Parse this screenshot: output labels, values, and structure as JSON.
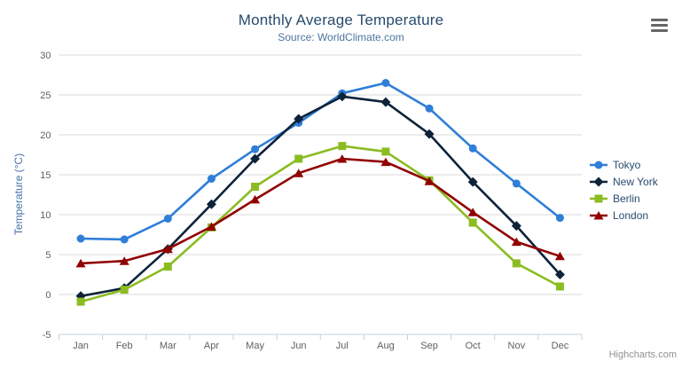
{
  "header": {
    "title": "Monthly Average Temperature",
    "subtitle": "Source: WorldClimate.com"
  },
  "export_menu": {
    "icon": "hamburger-menu-icon"
  },
  "credits": {
    "label": "Highcharts.com"
  },
  "chart_data": {
    "type": "line",
    "title": "Monthly Average Temperature",
    "subtitle": "Source: WorldClimate.com",
    "categories": [
      "Jan",
      "Feb",
      "Mar",
      "Apr",
      "May",
      "Jun",
      "Jul",
      "Aug",
      "Sep",
      "Oct",
      "Nov",
      "Dec"
    ],
    "series": [
      {
        "name": "Tokyo",
        "color": "#2f7ed8",
        "marker": "circle",
        "values": [
          7.0,
          6.9,
          9.5,
          14.5,
          18.2,
          21.5,
          25.2,
          26.5,
          23.3,
          18.3,
          13.9,
          9.6
        ]
      },
      {
        "name": "New York",
        "color": "#0d233a",
        "marker": "diamond",
        "values": [
          -0.2,
          0.8,
          5.7,
          11.3,
          17.0,
          22.0,
          24.8,
          24.1,
          20.1,
          14.1,
          8.6,
          2.5
        ]
      },
      {
        "name": "Berlin",
        "color": "#8bbc21",
        "marker": "square",
        "values": [
          -0.9,
          0.6,
          3.5,
          8.4,
          13.5,
          17.0,
          18.6,
          17.9,
          14.3,
          9.0,
          3.9,
          1.0
        ]
      },
      {
        "name": "London",
        "color": "#910000",
        "marker": "triangle",
        "values": [
          3.9,
          4.2,
          5.7,
          8.5,
          11.9,
          15.2,
          17.0,
          16.6,
          14.2,
          10.3,
          6.6,
          4.8
        ]
      }
    ],
    "xlabel": "",
    "ylabel": "Temperature (°C)",
    "ylim": [
      -5,
      30
    ],
    "ytick_step": 5,
    "grid": true,
    "legend_position": "right",
    "colors": {
      "gridline": "#d8d8d8",
      "axis_line": "#c0d0e0",
      "axis_label": "#606060",
      "title": "#274b6d",
      "subtitle": "#4d759e",
      "yaxis_title": "#4572a7"
    }
  }
}
